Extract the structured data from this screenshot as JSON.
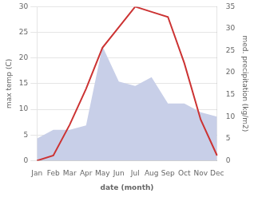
{
  "chart_data": {
    "type": "line",
    "categories": [
      "Jan",
      "Feb",
      "Mar",
      "Apr",
      "May",
      "Jun",
      "Jul",
      "Aug",
      "Sep",
      "Oct",
      "Nov",
      "Dec"
    ],
    "xlabel": "date (month)",
    "ylabel": "max temp (C)",
    "y2label": "med. precipitation (kg/m2)",
    "series": [
      {
        "type": "area",
        "axis": "y2",
        "color": "#c8cfe8",
        "values": [
          5,
          7,
          7,
          8,
          26,
          18,
          17,
          19,
          13,
          13,
          11,
          10
        ]
      },
      {
        "type": "line",
        "color": "#cc3333",
        "values": [
          0,
          1,
          7,
          14,
          22,
          26,
          30,
          29,
          28,
          19,
          8,
          1
        ]
      }
    ],
    "ylim": [
      0,
      30
    ],
    "yticks": [
      0,
      5,
      10,
      15,
      20,
      25,
      30
    ],
    "y2lim": [
      0,
      35
    ],
    "y2ticks": [
      0,
      5,
      10,
      15,
      20,
      25,
      30,
      35
    ],
    "grid": true
  }
}
